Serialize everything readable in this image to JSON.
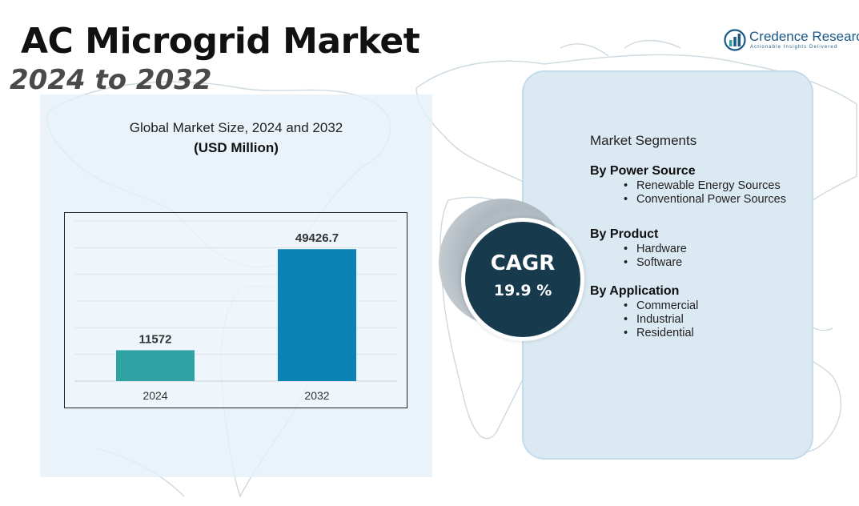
{
  "header": {
    "title": "AC Microgrid Market",
    "subtitle": "2024 to 2032"
  },
  "logo": {
    "name": "Credence Research",
    "tagline": "Actionable Insights Delivered"
  },
  "chart_heading": {
    "line1": "Global Market Size, 2024 and 2032",
    "line2": "(USD Million)"
  },
  "chart_data": {
    "type": "bar",
    "categories": [
      "2024",
      "2032"
    ],
    "values": [
      11572,
      49426.7
    ],
    "value_labels": [
      "11572",
      "49426.7"
    ],
    "title": "Global Market Size, 2024 and 2032",
    "xlabel": "",
    "ylabel": "(USD Million)",
    "ylim": [
      0,
      60000
    ],
    "grid": true,
    "colors": [
      "#2fa3a3",
      "#0b82b4"
    ]
  },
  "cagr": {
    "label": "CAGR",
    "value": "19.9 %"
  },
  "segments": {
    "title": "Market Segments",
    "groups": [
      {
        "heading": "By Power Source",
        "items": [
          "Renewable Energy Sources",
          "Conventional Power Sources"
        ]
      },
      {
        "heading": "By Product",
        "items": [
          "Hardware",
          "Software"
        ]
      },
      {
        "heading": "By Application",
        "items": [
          "Commercial",
          "Industrial",
          "Residential"
        ]
      }
    ]
  },
  "colors": {
    "circle": "#173a4d",
    "panel": "#dbe9f2",
    "accent": "#1b5a86"
  }
}
